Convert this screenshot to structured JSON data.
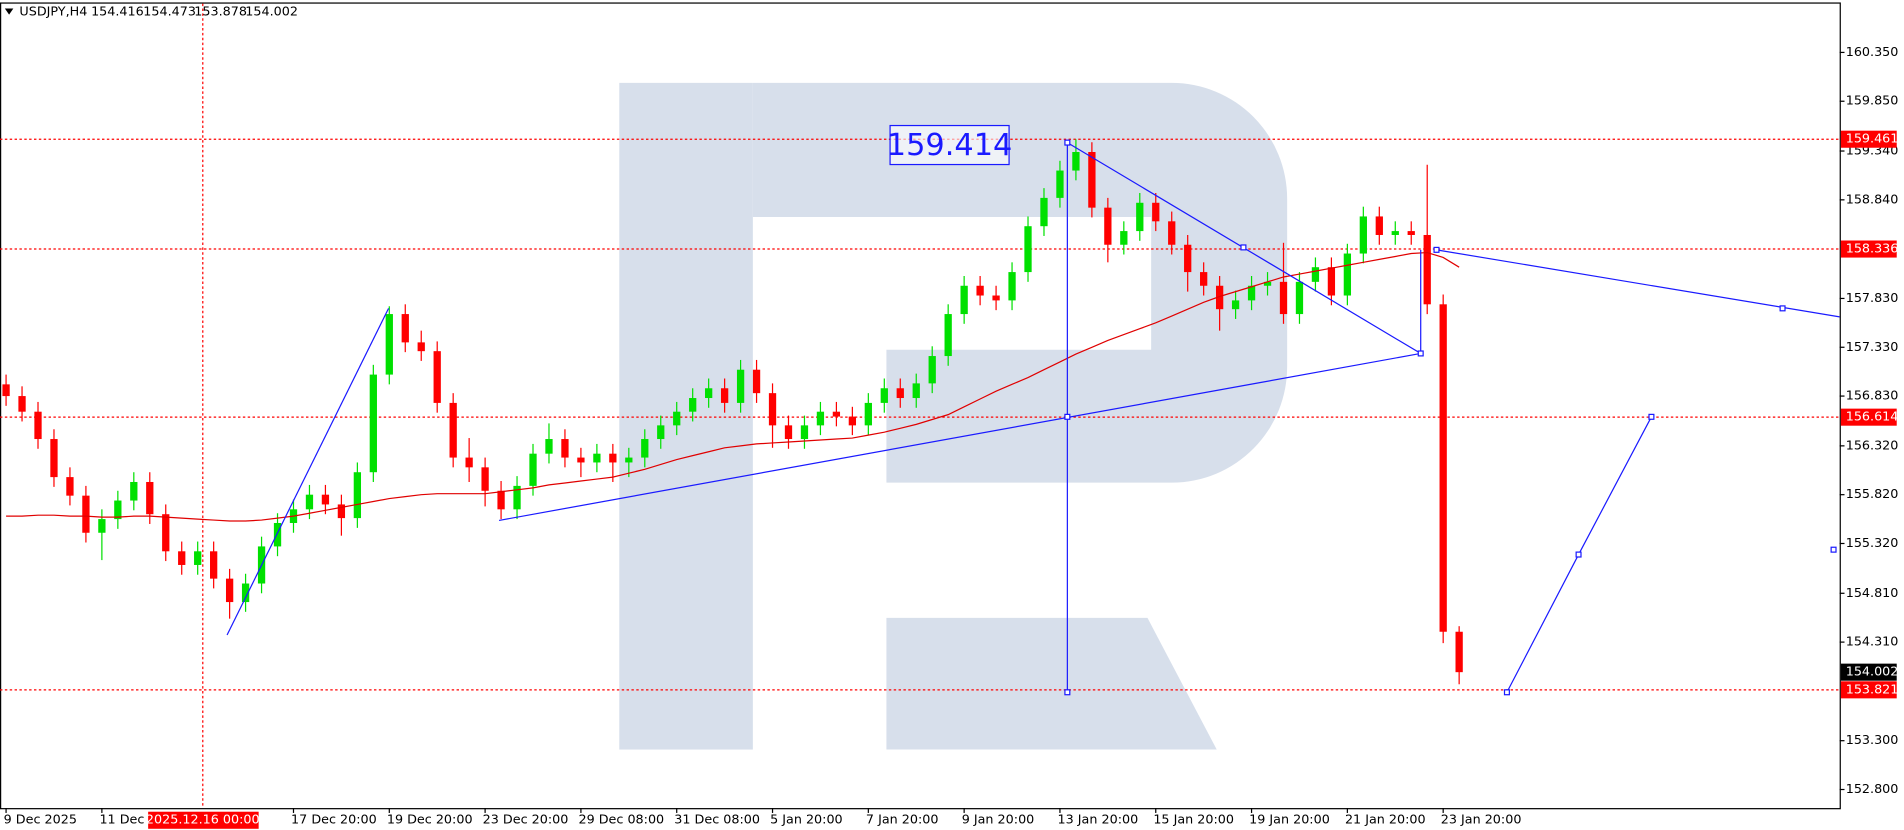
{
  "chart_data": {
    "type": "candlestick",
    "symbol": "USDJPY,H4",
    "categories": [
      "9 Dec 2025",
      null,
      null,
      null,
      null,
      null,
      "11 Dec 20:00",
      null,
      null,
      null,
      null,
      null,
      null,
      null,
      null,
      null,
      null,
      null,
      "17 Dec 20:00",
      null,
      null,
      null,
      null,
      null,
      "19 Dec 20:00",
      null,
      null,
      null,
      null,
      null,
      "23 Dec 20:00",
      null,
      null,
      null,
      null,
      null,
      "29 Dec 08:00",
      null,
      null,
      null,
      null,
      null,
      "31 Dec 08:00",
      null,
      null,
      null,
      null,
      null,
      "5 Jan 20:00",
      null,
      null,
      null,
      null,
      null,
      "7 Jan 20:00",
      null,
      null,
      null,
      null,
      null,
      "9 Jan 20:00",
      null,
      null,
      null,
      null,
      null,
      "13 Jan 20:00",
      null,
      null,
      null,
      null,
      null,
      "15 Jan 20:00",
      null,
      null,
      null,
      null,
      null,
      "19 Jan 20:00",
      null,
      null,
      null,
      null,
      null,
      "21 Jan 20:00",
      null,
      null,
      null,
      null,
      null,
      "23 Jan 20:00",
      null
    ],
    "open": [
      156.95,
      156.83,
      156.67,
      156.39,
      156.0,
      155.81,
      155.43,
      155.57,
      155.76,
      155.95,
      155.62,
      155.24,
      155.1,
      155.24,
      154.96,
      154.72,
      154.91,
      155.29,
      155.53,
      155.67,
      155.82,
      155.72,
      155.58,
      156.05,
      157.05,
      157.67,
      157.38,
      157.29,
      156.76,
      156.2,
      156.1,
      155.86,
      155.67,
      155.91,
      156.24,
      156.39,
      156.2,
      156.15,
      156.24,
      156.15,
      156.2,
      156.39,
      156.53,
      156.67,
      156.81,
      156.91,
      156.76,
      157.1,
      156.86,
      156.53,
      156.39,
      156.53,
      156.67,
      156.62,
      156.53,
      156.76,
      156.91,
      156.81,
      156.96,
      157.24,
      157.67,
      157.96,
      157.86,
      157.81,
      158.1,
      158.57,
      158.86,
      159.14,
      159.33,
      158.76,
      158.38,
      158.52,
      158.81,
      158.62,
      158.38,
      158.1,
      157.96,
      157.72,
      157.81,
      157.96,
      158.0,
      157.67,
      158.0,
      158.15,
      157.86,
      158.29,
      158.67,
      158.48,
      158.52,
      158.48,
      157.77,
      154.416
    ],
    "high": [
      157.05,
      156.93,
      156.77,
      156.49,
      156.1,
      155.91,
      155.67,
      155.86,
      156.05,
      156.05,
      155.72,
      155.34,
      155.34,
      155.34,
      155.06,
      155.01,
      155.39,
      155.63,
      155.77,
      155.92,
      155.92,
      155.82,
      156.15,
      157.15,
      157.75,
      157.77,
      157.5,
      157.39,
      156.86,
      156.4,
      156.2,
      155.96,
      156.01,
      156.34,
      156.55,
      156.49,
      156.3,
      156.34,
      156.34,
      156.3,
      156.49,
      156.63,
      156.77,
      156.91,
      157.01,
      157.01,
      157.2,
      157.2,
      156.96,
      156.63,
      156.63,
      156.77,
      156.77,
      156.72,
      156.86,
      157.01,
      157.01,
      157.06,
      157.34,
      157.77,
      158.06,
      158.06,
      157.96,
      158.2,
      158.67,
      158.96,
      159.24,
      159.46,
      159.43,
      158.86,
      158.62,
      158.91,
      158.91,
      158.72,
      158.48,
      158.2,
      158.06,
      157.91,
      158.06,
      158.1,
      158.4,
      158.1,
      158.25,
      158.25,
      158.39,
      158.77,
      158.77,
      158.62,
      158.62,
      159.2,
      157.87,
      154.473
    ],
    "low": [
      156.73,
      156.57,
      156.29,
      155.9,
      155.71,
      155.33,
      155.15,
      155.47,
      155.66,
      155.52,
      155.14,
      155.0,
      155.0,
      154.86,
      154.55,
      154.62,
      154.81,
      155.19,
      155.43,
      155.57,
      155.62,
      155.4,
      155.48,
      155.95,
      156.95,
      157.28,
      157.19,
      156.66,
      156.1,
      155.95,
      155.7,
      155.57,
      155.57,
      155.81,
      156.14,
      156.1,
      156.0,
      156.05,
      155.95,
      156.0,
      156.1,
      156.29,
      156.43,
      156.57,
      156.71,
      156.66,
      156.66,
      156.76,
      156.3,
      156.29,
      156.29,
      156.43,
      156.52,
      156.43,
      156.43,
      156.66,
      156.71,
      156.71,
      156.86,
      157.14,
      157.57,
      157.76,
      157.71,
      157.71,
      158.0,
      158.47,
      158.76,
      159.04,
      158.66,
      158.2,
      158.28,
      158.42,
      158.52,
      158.28,
      157.9,
      157.86,
      157.5,
      157.62,
      157.71,
      157.86,
      157.57,
      157.57,
      157.9,
      157.76,
      157.76,
      158.19,
      158.38,
      158.38,
      158.38,
      157.67,
      154.3,
      153.878
    ],
    "close": [
      156.83,
      156.67,
      156.39,
      156.0,
      155.81,
      155.43,
      155.57,
      155.76,
      155.95,
      155.62,
      155.24,
      155.1,
      155.24,
      154.96,
      154.72,
      154.91,
      155.29,
      155.53,
      155.67,
      155.82,
      155.72,
      155.58,
      156.05,
      157.05,
      157.67,
      157.38,
      157.29,
      156.76,
      156.2,
      156.1,
      155.86,
      155.67,
      155.91,
      156.24,
      156.39,
      156.2,
      156.15,
      156.24,
      156.15,
      156.2,
      156.39,
      156.53,
      156.67,
      156.81,
      156.91,
      156.76,
      157.1,
      156.86,
      156.53,
      156.39,
      156.53,
      156.67,
      156.62,
      156.53,
      156.76,
      156.91,
      156.81,
      156.96,
      157.24,
      157.67,
      157.96,
      157.86,
      157.81,
      158.1,
      158.57,
      158.86,
      159.14,
      159.33,
      158.76,
      158.38,
      158.52,
      158.81,
      158.62,
      158.38,
      158.1,
      157.96,
      157.72,
      157.81,
      157.96,
      158.0,
      157.67,
      158.0,
      158.15,
      157.86,
      158.29,
      158.67,
      158.48,
      158.52,
      158.48,
      157.77,
      154.416,
      154.002
    ],
    "up_color": "#00e000",
    "down_color": "#ff0000",
    "ma": {
      "color": "#e00000",
      "values": [
        155.6,
        155.6,
        155.61,
        155.61,
        155.6,
        155.6,
        155.59,
        155.59,
        155.6,
        155.6,
        155.59,
        155.58,
        155.57,
        155.56,
        155.55,
        155.55,
        155.56,
        155.58,
        155.6,
        155.63,
        155.66,
        155.69,
        155.72,
        155.75,
        155.78,
        155.8,
        155.82,
        155.83,
        155.83,
        155.83,
        155.83,
        155.85,
        155.87,
        155.89,
        155.92,
        155.94,
        155.96,
        155.98,
        156.0,
        156.04,
        156.08,
        156.13,
        156.18,
        156.22,
        156.26,
        156.3,
        156.32,
        156.34,
        156.35,
        156.36,
        156.37,
        156.38,
        156.39,
        156.4,
        156.43,
        156.46,
        156.5,
        156.54,
        156.59,
        156.64,
        156.72,
        156.8,
        156.88,
        156.95,
        157.02,
        157.1,
        157.18,
        157.26,
        157.33,
        157.4,
        157.46,
        157.52,
        157.58,
        157.65,
        157.72,
        157.79,
        157.85,
        157.9,
        157.95,
        158.0,
        158.05,
        158.08,
        158.11,
        158.14,
        158.17,
        158.2,
        158.23,
        158.26,
        158.29,
        158.3,
        158.25,
        158.15
      ]
    },
    "ylim": [
      152.61,
      160.862
    ],
    "yticks": [
      {
        "value": 160.35,
        "label": "160.350"
      },
      {
        "value": 159.85,
        "label": "159.850"
      },
      {
        "value": 159.34,
        "label": "159.340"
      },
      {
        "value": 158.84,
        "label": "158.840"
      },
      {
        "value": 157.83,
        "label": "157.830"
      },
      {
        "value": 157.33,
        "label": "157.330"
      },
      {
        "value": 156.83,
        "label": "156.830"
      },
      {
        "value": 156.32,
        "label": "156.320"
      },
      {
        "value": 155.82,
        "label": "155.820"
      },
      {
        "value": 155.32,
        "label": "155.320"
      },
      {
        "value": 154.81,
        "label": "154.810"
      },
      {
        "value": 154.31,
        "label": "154.310"
      },
      {
        "value": 153.3,
        "label": "153.300"
      },
      {
        "value": 152.8,
        "label": "152.800"
      }
    ],
    "levels": [
      {
        "value": 159.461,
        "color": "#ff0000"
      },
      {
        "value": 158.336,
        "color": "#ff0000"
      },
      {
        "value": 156.614,
        "color": "#ff0000"
      },
      {
        "value": 153.821,
        "color": "#ff0000"
      }
    ],
    "annotations": {
      "price_box": "159.414",
      "crosshair_time": "2025.12.16 00:00"
    }
  }
}
